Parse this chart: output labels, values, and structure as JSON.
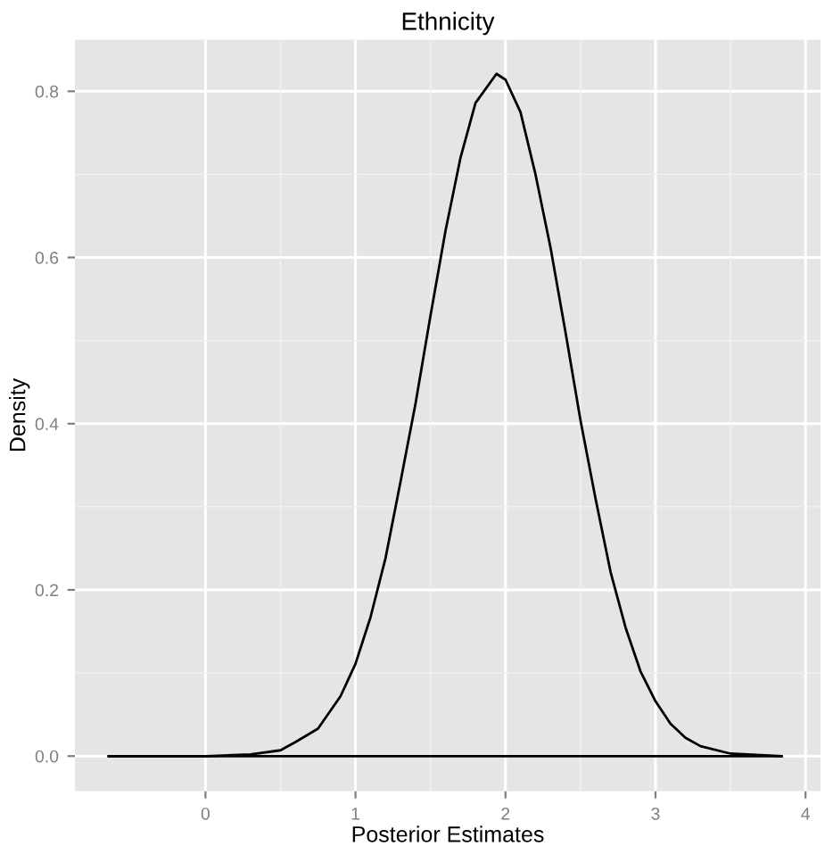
{
  "chart_data": {
    "type": "line",
    "title": "Ethnicity",
    "xlabel": "Posterior Estimates",
    "ylabel": "Density",
    "x": [
      -0.645,
      0,
      0.3,
      0.5,
      0.6,
      0.75,
      0.9,
      1.0,
      1.1,
      1.2,
      1.3,
      1.4,
      1.5,
      1.6,
      1.7,
      1.8,
      1.94,
      2.0,
      2.1,
      2.2,
      2.3,
      2.4,
      2.5,
      2.6,
      2.7,
      2.8,
      2.9,
      3.0,
      3.1,
      3.2,
      3.3,
      3.5,
      3.84
    ],
    "series": [
      {
        "color": "#000000",
        "values": [
          0,
          0,
          0.002,
          0.007,
          0.017,
          0.033,
          0.072,
          0.111,
          0.167,
          0.238,
          0.33,
          0.424,
          0.53,
          0.632,
          0.72,
          0.786,
          0.821,
          0.814,
          0.775,
          0.7,
          0.612,
          0.51,
          0.404,
          0.31,
          0.222,
          0.155,
          0.102,
          0.066,
          0.039,
          0.022,
          0.012,
          0.003,
          0
        ]
      }
    ],
    "xlim": [
      -0.87,
      4.1
    ],
    "ylim": [
      -0.042,
      0.862
    ],
    "xticks": [
      0,
      1,
      2,
      3,
      4
    ],
    "yticks": [
      {
        "value": 0,
        "label": "0.0"
      },
      {
        "value": 0.2,
        "label": "0.2"
      },
      {
        "value": 0.4,
        "label": "0.4"
      },
      {
        "value": 0.6,
        "label": "0.6"
      },
      {
        "value": 0.8,
        "label": "0.8"
      }
    ],
    "ref_lines": [
      {
        "axis": "y",
        "value": 0,
        "color": "#000000"
      }
    ],
    "grid": true,
    "legend": false
  }
}
